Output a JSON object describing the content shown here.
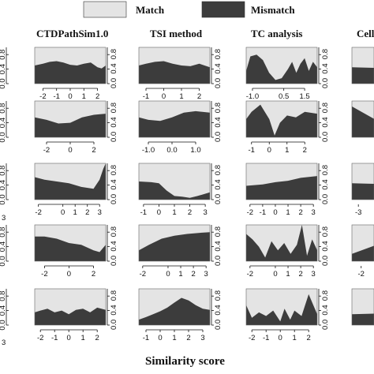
{
  "legend": {
    "match_label": "Match",
    "mismatch_label": "Mismatch",
    "match_color": "#e4e4e4",
    "mismatch_color": "#3c3c3c"
  },
  "xlabel": "Similarity score",
  "chart_data": {
    "type": "area",
    "description_of_series": [
      "Mismatch",
      "Match"
    ],
    "stacking": "conditional density fill (mismatch fraction shown dark, match fraction light)",
    "columns": [
      {
        "title": "CTDPathSim1.0",
        "rows": [
          {
            "xticks": [
              "-2",
              "-1",
              "0",
              "1",
              "2"
            ],
            "xlim": [
              -2.6,
              2.6
            ],
            "yticks": [
              "0.0",
              "0.4",
              "0.8"
            ],
            "ylim": [
              0,
              1
            ],
            "x": [
              -2.6,
              -2,
              -1.5,
              -1,
              -0.5,
              0,
              0.5,
              1,
              1.5,
              2,
              2.3,
              2.6
            ],
            "y": [
              0.5,
              0.55,
              0.6,
              0.62,
              0.58,
              0.52,
              0.5,
              0.55,
              0.58,
              0.45,
              0.42,
              0.5
            ]
          },
          {
            "xticks": [
              "-2",
              "0",
              "2"
            ],
            "xlim": [
              -3,
              3
            ],
            "yticks": [
              "0.0",
              "0.4",
              "0.8"
            ],
            "ylim": [
              0,
              1
            ],
            "x": [
              -3,
              -2,
              -1,
              0,
              1,
              2,
              3
            ],
            "y": [
              0.55,
              0.48,
              0.38,
              0.4,
              0.55,
              0.62,
              0.65
            ]
          },
          {
            "xticks": [
              "-2",
              "0",
              "1",
              "2",
              "3"
            ],
            "xlim": [
              -2.3,
              3.5
            ],
            "yticks": [
              "0.0",
              "0.4",
              "0.8"
            ],
            "ylim": [
              0,
              1
            ],
            "x": [
              -2.3,
              -1.5,
              -0.5,
              0.5,
              1.5,
              2.5,
              3,
              3.3,
              3.5
            ],
            "y": [
              0.62,
              0.55,
              0.5,
              0.45,
              0.35,
              0.3,
              0.55,
              0.85,
              1.0
            ]
          },
          {
            "xticks": [
              "-2",
              "0",
              "2"
            ],
            "xlim": [
              -2.8,
              3
            ],
            "yticks": [
              "0.0",
              "0.4",
              "0.8"
            ],
            "ylim": [
              0,
              1
            ],
            "x": [
              -2.8,
              -2,
              -1,
              0,
              1,
              2,
              2.5,
              3
            ],
            "y": [
              0.68,
              0.68,
              0.62,
              0.5,
              0.45,
              0.3,
              0.25,
              0.45
            ]
          },
          {
            "xticks": [
              "-2",
              "-1",
              "0",
              "1",
              "2"
            ],
            "xlim": [
              -2.4,
              2.6
            ],
            "yticks": [
              "0.0",
              "0.4",
              "0.8"
            ],
            "ylim": [
              0,
              1
            ],
            "x": [
              -2.4,
              -2,
              -1.5,
              -1,
              -0.5,
              0,
              0.5,
              1,
              1.5,
              2,
              2.6
            ],
            "y": [
              0.35,
              0.4,
              0.45,
              0.35,
              0.4,
              0.3,
              0.42,
              0.45,
              0.35,
              0.48,
              0.42
            ]
          }
        ]
      },
      {
        "title": "TSI method",
        "rows": [
          {
            "xticks": [
              "-1",
              "0",
              "1",
              "2"
            ],
            "xlim": [
              -1.4,
              2.6
            ],
            "yticks": [
              "0.0",
              "0.4",
              "0.8"
            ],
            "ylim": [
              0,
              1
            ],
            "x": [
              -1.4,
              -1,
              -0.5,
              0,
              0.5,
              1,
              1.5,
              2,
              2.6
            ],
            "y": [
              0.5,
              0.55,
              0.6,
              0.62,
              0.55,
              0.5,
              0.48,
              0.55,
              0.45
            ]
          },
          {
            "xticks": [
              "-1.0",
              "0.0",
              "1.0"
            ],
            "xlim": [
              -1.4,
              1.6
            ],
            "yticks": [
              "0.0",
              "0.4",
              "0.8"
            ],
            "ylim": [
              0,
              1
            ],
            "x": [
              -1.4,
              -1,
              -0.5,
              0,
              0.5,
              1,
              1.6
            ],
            "y": [
              0.55,
              0.48,
              0.45,
              0.55,
              0.68,
              0.72,
              0.68
            ]
          },
          {
            "xticks": [
              "-1",
              "0",
              "1",
              "2",
              "3"
            ],
            "xlim": [
              -1.3,
              3.3
            ],
            "yticks": [
              "0.0",
              "0.4",
              "0.8"
            ],
            "ylim": [
              0,
              1
            ],
            "x": [
              -1.3,
              -0.5,
              0,
              0.5,
              1,
              1.5,
              2,
              2.5,
              3.3
            ],
            "y": [
              0.5,
              0.48,
              0.45,
              0.25,
              0.1,
              0.08,
              0.05,
              0.1,
              0.2
            ]
          },
          {
            "xticks": [
              "-2",
              "0",
              "1",
              "2",
              "3"
            ],
            "xlim": [
              -2.3,
              3.3
            ],
            "yticks": [
              "0.0",
              "0.4",
              "0.8"
            ],
            "ylim": [
              0,
              1
            ],
            "x": [
              -2.3,
              -1.5,
              -0.5,
              0.5,
              1.5,
              2.5,
              3.3
            ],
            "y": [
              0.3,
              0.45,
              0.62,
              0.7,
              0.75,
              0.78,
              0.8
            ]
          },
          {
            "xticks": [
              "-1",
              "0",
              "1",
              "2",
              "3"
            ],
            "xlim": [
              -1.5,
              3.5
            ],
            "yticks": [
              "0.0",
              "0.4",
              "0.8"
            ],
            "ylim": [
              0,
              1
            ],
            "x": [
              -1.5,
              -1,
              -0.5,
              0,
              0.5,
              1,
              1.5,
              2,
              2.5,
              3,
              3.5
            ],
            "y": [
              0.15,
              0.22,
              0.3,
              0.38,
              0.48,
              0.62,
              0.75,
              0.68,
              0.55,
              0.45,
              0.42
            ]
          }
        ]
      },
      {
        "title": "TC analysis",
        "rows": [
          {
            "xticks": [
              "-1.0",
              "0.5",
              "1.5"
            ],
            "xlim": [
              -1.3,
              2.1
            ],
            "yticks": [
              "0.0",
              "0.4",
              "0.8"
            ],
            "ylim": [
              0,
              1
            ],
            "x": [
              -1.3,
              -1.1,
              -0.8,
              -0.5,
              -0.2,
              0.1,
              0.4,
              0.7,
              0.9,
              1.1,
              1.3,
              1.5,
              1.7,
              1.9,
              2.1
            ],
            "y": [
              0.35,
              0.75,
              0.8,
              0.65,
              0.3,
              0.1,
              0.15,
              0.4,
              0.6,
              0.3,
              0.55,
              0.7,
              0.35,
              0.6,
              0.45
            ]
          },
          {
            "xticks": [
              "-1",
              "0",
              "1",
              "2"
            ],
            "xlim": [
              -1.3,
              2.7
            ],
            "yticks": [
              "0.0",
              "0.4",
              "0.8"
            ],
            "ylim": [
              0,
              1
            ],
            "x": [
              -1.3,
              -1,
              -0.5,
              0,
              0.3,
              0.6,
              1,
              1.5,
              2,
              2.7
            ],
            "y": [
              0.5,
              0.7,
              0.9,
              0.5,
              0.05,
              0.4,
              0.6,
              0.55,
              0.7,
              0.65
            ]
          },
          {
            "xticks": [
              "-2",
              "-1",
              "0",
              "1",
              "2",
              "3"
            ],
            "xlim": [
              -2.3,
              3.3
            ],
            "yticks": [
              "0.0",
              "0.4",
              "0.8"
            ],
            "ylim": [
              0,
              1
            ],
            "x": [
              -2.3,
              -1,
              0,
              1,
              2,
              3.3
            ],
            "y": [
              0.38,
              0.42,
              0.48,
              0.52,
              0.6,
              0.65
            ]
          },
          {
            "xticks": [
              "-2",
              "0",
              "1",
              "2",
              "3"
            ],
            "xlim": [
              -2.3,
              3.3
            ],
            "yticks": [
              "0.0",
              "0.4",
              "0.8"
            ],
            "ylim": [
              0,
              1
            ],
            "x": [
              -2.3,
              -1.8,
              -1.3,
              -0.8,
              -0.3,
              0.2,
              0.7,
              1.2,
              1.7,
              2.1,
              2.5,
              2.9,
              3.3
            ],
            "y": [
              0.75,
              0.6,
              0.4,
              0.1,
              0.55,
              0.3,
              0.5,
              0.2,
              0.45,
              1.0,
              0.15,
              0.6,
              0.3
            ]
          },
          {
            "xticks": [
              "-2",
              "-1",
              "0",
              "1",
              "2"
            ],
            "xlim": [
              -2.4,
              2.6
            ],
            "yticks": [
              "0.0",
              "0.4",
              "0.8"
            ],
            "ylim": [
              0,
              1
            ],
            "x": [
              -2.4,
              -2,
              -1.5,
              -1,
              -0.5,
              0,
              0.3,
              0.7,
              1,
              1.5,
              2,
              2.6
            ],
            "y": [
              0.55,
              0.2,
              0.35,
              0.25,
              0.4,
              0.1,
              0.45,
              0.15,
              0.4,
              0.25,
              0.85,
              0.3
            ]
          }
        ]
      },
      {
        "title": "Cell",
        "rows": [
          {
            "xticks": [],
            "xlim": [
              0,
              1
            ],
            "yticks": [],
            "ylim": [
              0,
              1
            ],
            "x": [
              0,
              1
            ],
            "y": [
              0.45,
              0.4
            ]
          },
          {
            "xticks": [],
            "xlim": [
              0,
              1
            ],
            "yticks": [],
            "ylim": [
              0,
              1
            ],
            "x": [
              0,
              0.5,
              1
            ],
            "y": [
              0.85,
              0.3,
              0.4
            ]
          },
          {
            "xticks": [
              "-3"
            ],
            "xlim": [
              -3.3,
              0
            ],
            "yticks": [],
            "ylim": [
              0,
              1
            ],
            "x": [
              -3.3,
              0
            ],
            "y": [
              0.45,
              0.4
            ]
          },
          {
            "xticks": [
              "-2"
            ],
            "xlim": [
              -2.3,
              0
            ],
            "yticks": [],
            "ylim": [
              0,
              1
            ],
            "x": [
              -2.3,
              -1.5,
              0
            ],
            "y": [
              0.2,
              0.45,
              0.6
            ]
          },
          {
            "xticks": [],
            "xlim": [
              0,
              1
            ],
            "yticks": [],
            "ylim": [
              0,
              1
            ],
            "x": [
              0,
              1
            ],
            "y": [
              0.3,
              0.35
            ]
          }
        ]
      }
    ],
    "left_partial_column": {
      "yticks": [
        "0.0",
        "0.4",
        "0.8"
      ],
      "xticks_visible": [
        "3",
        "3"
      ]
    }
  }
}
